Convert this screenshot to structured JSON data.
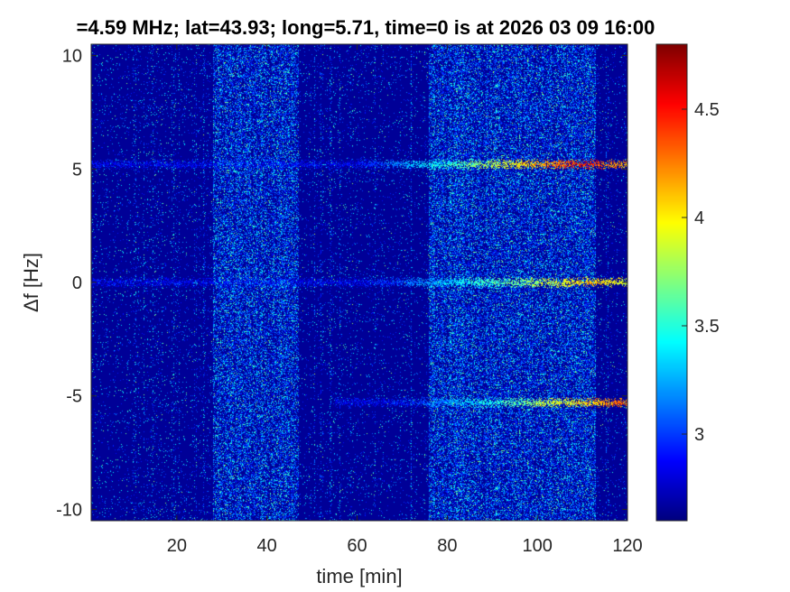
{
  "chart_data": {
    "type": "heatmap",
    "title": "=4.59 MHz;  lat=43.93; long=5.71, time=0 is at 2026 03 09 16:00",
    "xlabel": "time [min]",
    "ylabel": "Δf [Hz]",
    "xlim": [
      1,
      120
    ],
    "ylim": [
      -10.5,
      10.5
    ],
    "x_ticks": [
      20,
      40,
      60,
      80,
      100,
      120
    ],
    "x_tick_labels": [
      "20",
      "40",
      "60",
      "80",
      "100",
      "120"
    ],
    "y_ticks": [
      -10,
      -5,
      0,
      5,
      10
    ],
    "y_tick_labels": [
      "-10",
      "-5",
      "0",
      "5",
      "10"
    ],
    "colorbar": {
      "colormap": "jet",
      "range": [
        2.6,
        4.8
      ],
      "ticks": [
        3,
        3.5,
        4,
        4.5
      ],
      "tick_labels": [
        "3",
        "3.5",
        "4",
        "4.5"
      ]
    },
    "bright_time_bands_min": [
      [
        28,
        47
      ],
      [
        76,
        113
      ]
    ],
    "spectral_lines": [
      {
        "delta_f_hz": 5.2,
        "time_range_min": [
          1,
          120
        ],
        "peak_level": 4.7,
        "peak_time_min": 110
      },
      {
        "delta_f_hz": 0,
        "time_range_min": [
          1,
          120
        ],
        "peak_level": 4.3,
        "peak_time_min": 112
      },
      {
        "delta_f_hz": -5.3,
        "time_range_min": [
          55,
          120
        ],
        "peak_level": 4.5,
        "peak_time_min": 118
      }
    ],
    "background_level": 2.65,
    "grid": false
  }
}
